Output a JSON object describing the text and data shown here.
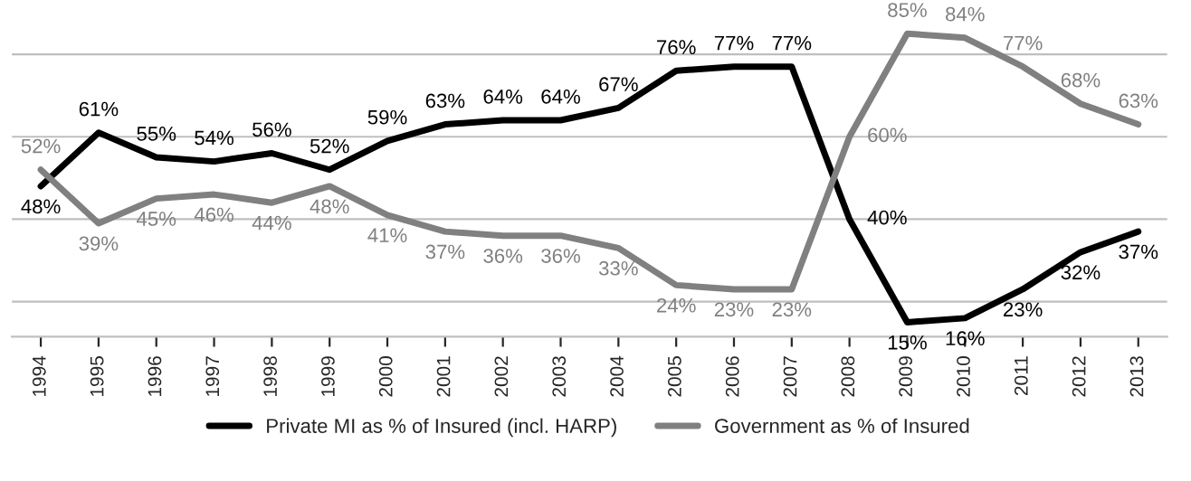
{
  "chart_data": {
    "type": "line",
    "categories": [
      "1994",
      "1995",
      "1996",
      "1997",
      "1998",
      "1999",
      "2000",
      "2001",
      "2002",
      "2003",
      "2004",
      "2005",
      "2006",
      "2007",
      "2008",
      "2009",
      "2010",
      "2011",
      "2012",
      "2013"
    ],
    "series": [
      {
        "name": "Private MI as % of Insured (incl. HARP)",
        "color": "#000000",
        "values": [
          48,
          61,
          55,
          54,
          56,
          52,
          59,
          63,
          64,
          64,
          67,
          76,
          77,
          77,
          40,
          15,
          16,
          23,
          32,
          37
        ],
        "value_labels": [
          "48%",
          "61%",
          "55%",
          "54%",
          "56%",
          "52%",
          "59%",
          "63%",
          "64%",
          "64%",
          "67%",
          "76%",
          "77%",
          "77%",
          "40%",
          "15%",
          "16%",
          "23%",
          "32%",
          "37%"
        ]
      },
      {
        "name": "Government as % of Insured",
        "color": "#808080",
        "values": [
          52,
          39,
          45,
          46,
          44,
          48,
          41,
          37,
          36,
          36,
          33,
          24,
          23,
          23,
          60,
          85,
          84,
          77,
          68,
          63
        ],
        "value_labels": [
          "52%",
          "39%",
          "45%",
          "46%",
          "44%",
          "48%",
          "41%",
          "37%",
          "36%",
          "36%",
          "33%",
          "24%",
          "23%",
          "23%",
          "60%",
          "85%",
          "84%",
          "77%",
          "68%",
          "63%"
        ]
      }
    ],
    "grid": "y",
    "tick_labels": "x",
    "legend": "bottom",
    "marker": "none",
    "line_style": "solid"
  }
}
